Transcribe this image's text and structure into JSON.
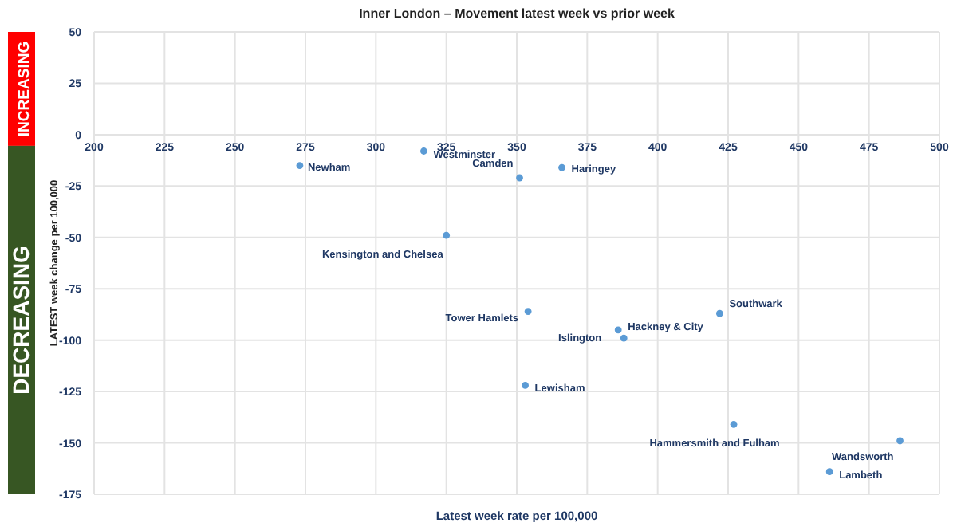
{
  "chart_data": {
    "type": "scatter",
    "title": "Inner London – Movement latest week vs prior week",
    "xlabel": "Latest week rate per 100,000",
    "ylabel": "LATEST week change per 100,000",
    "x": [
      273,
      317,
      351,
      366,
      325,
      354,
      386,
      388,
      422,
      353,
      427,
      486,
      461
    ],
    "series": [
      {
        "color": "#5b9bd5",
        "values": [
          -15,
          -8,
          -21,
          -16,
          -49,
          -86,
          -95,
          -99,
          -87,
          -122,
          -141,
          -149,
          -164
        ],
        "value_labels": [
          "Newham",
          "Westminster",
          "Camden",
          "Haringey",
          "Kensington and Chelsea",
          "Tower Hamlets",
          "Hackney & City",
          "Islington",
          "Southwark",
          "Lewisham",
          "Hammersmith and Fulham",
          "Wandsworth",
          "Lambeth"
        ]
      }
    ],
    "xlim": [
      200,
      500
    ],
    "xticks": [
      200,
      225,
      250,
      275,
      300,
      325,
      350,
      375,
      400,
      425,
      450,
      475,
      500
    ],
    "ylim": [
      -175,
      50
    ],
    "yticks": [
      -175,
      -150,
      -125,
      -100,
      -75,
      -50,
      -25,
      0,
      25,
      50
    ],
    "annotations": [
      "INCREASING",
      "DECREASING"
    ],
    "grid": true,
    "marker": "circle",
    "legend": false
  }
}
